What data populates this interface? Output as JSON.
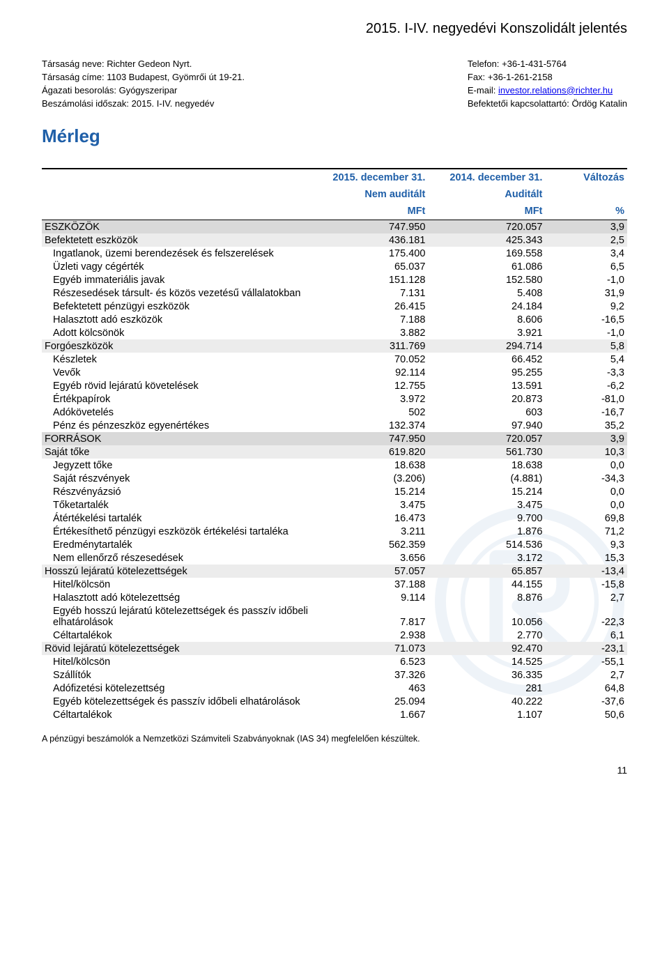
{
  "page": {
    "title": "2015. I-IV. negyedévi Konszolidált jelentés",
    "section": "Mérleg",
    "footnote": "A pénzügyi beszámolók a Nemzetközi Számviteli Szabványoknak (IAS 34) megfelelően készültek.",
    "page_number": "11"
  },
  "header": {
    "left": {
      "l1_label": "Társaság neve:",
      "l1_value": "Richter Gedeon Nyrt.",
      "l2_label": "Társaság címe:",
      "l2_value": "1103 Budapest, Gyömrői út 19-21.",
      "l3_label": "Ágazati besorolás:",
      "l3_value": "Gyógyszeripar",
      "l4_label": "Beszámolási  időszak:",
      "l4_value": "2015. I-IV. negyedév"
    },
    "right": {
      "r1_label": "Telefon:",
      "r1_value": "+36-1-431-5764",
      "r2_label": "Fax:",
      "r2_value": "+36-1-261-2158",
      "r3_label": "E-mail:",
      "r3_value": "investor.relations@richter.hu",
      "r4_label": "Befektetői kapcsolattartó:",
      "r4_value": "Ördög Katalin"
    }
  },
  "table": {
    "columns": {
      "col1_line1": "2015. december 31.",
      "col1_line2": "Nem auditált",
      "col1_line3": "MFt",
      "col2_line1": "2014. december 31.",
      "col2_line2": "Auditált",
      "col2_line3": "MFt",
      "col3_line1": "Változás",
      "col3_line2": "",
      "col3_line3": "%"
    },
    "rows": [
      {
        "label": "ESZKÖZÖK",
        "v1": "747.950",
        "v2": "720.057",
        "v3": "3,9",
        "shade": "shaded",
        "indent": 0
      },
      {
        "label": "Befektetett eszközök",
        "v1": "436.181",
        "v2": "425.343",
        "v3": "2,5",
        "shade": "light-shaded",
        "indent": 0
      },
      {
        "label": "Ingatlanok, üzemi berendezések és felszerelések",
        "v1": "175.400",
        "v2": "169.558",
        "v3": "3,4",
        "shade": "",
        "indent": 1
      },
      {
        "label": "Üzleti vagy cégérték",
        "v1": "65.037",
        "v2": "61.086",
        "v3": "6,5",
        "shade": "",
        "indent": 1
      },
      {
        "label": "Egyéb immateriális javak",
        "v1": "151.128",
        "v2": "152.580",
        "v3": "-1,0",
        "shade": "",
        "indent": 1
      },
      {
        "label": "Részesedések társult- és közös vezetésű vállalatokban",
        "v1": "7.131",
        "v2": "5.408",
        "v3": "31,9",
        "shade": "",
        "indent": 1
      },
      {
        "label": "Befektetett pénzügyi eszközök",
        "v1": "26.415",
        "v2": "24.184",
        "v3": "9,2",
        "shade": "",
        "indent": 1
      },
      {
        "label": "Halasztott adó eszközök",
        "v1": "7.188",
        "v2": "8.606",
        "v3": "-16,5",
        "shade": "",
        "indent": 1
      },
      {
        "label": "Adott kölcsönök",
        "v1": "3.882",
        "v2": "3.921",
        "v3": "-1,0",
        "shade": "",
        "indent": 1
      },
      {
        "label": "Forgóeszközök",
        "v1": "311.769",
        "v2": "294.714",
        "v3": "5,8",
        "shade": "light-shaded",
        "indent": 0
      },
      {
        "label": "Készletek",
        "v1": "70.052",
        "v2": "66.452",
        "v3": "5,4",
        "shade": "",
        "indent": 1
      },
      {
        "label": "Vevők",
        "v1": "92.114",
        "v2": "95.255",
        "v3": "-3,3",
        "shade": "",
        "indent": 1
      },
      {
        "label": "Egyéb rövid lejáratú követelések",
        "v1": "12.755",
        "v2": "13.591",
        "v3": "-6,2",
        "shade": "",
        "indent": 1
      },
      {
        "label": "Értékpapírok",
        "v1": "3.972",
        "v2": "20.873",
        "v3": "-81,0",
        "shade": "",
        "indent": 1
      },
      {
        "label": "Adókövetelés",
        "v1": "502",
        "v2": "603",
        "v3": "-16,7",
        "shade": "",
        "indent": 1
      },
      {
        "label": "Pénz és pénzeszköz egyenértékes",
        "v1": "132.374",
        "v2": "97.940",
        "v3": "35,2",
        "shade": "",
        "indent": 1
      },
      {
        "label": "FORRÁSOK",
        "v1": "747.950",
        "v2": "720.057",
        "v3": "3,9",
        "shade": "shaded",
        "indent": 0
      },
      {
        "label": "Saját tőke",
        "v1": "619.820",
        "v2": "561.730",
        "v3": "10,3",
        "shade": "light-shaded",
        "indent": 0
      },
      {
        "label": "Jegyzett tőke",
        "v1": "18.638",
        "v2": "18.638",
        "v3": "0,0",
        "shade": "",
        "indent": 1
      },
      {
        "label": "Saját részvények",
        "v1": "(3.206)",
        "v2": "(4.881)",
        "v3": "-34,3",
        "shade": "",
        "indent": 1
      },
      {
        "label": "Részvényázsió",
        "v1": "15.214",
        "v2": "15.214",
        "v3": "0,0",
        "shade": "",
        "indent": 1
      },
      {
        "label": "Tőketartalék",
        "v1": "3.475",
        "v2": "3.475",
        "v3": "0,0",
        "shade": "",
        "indent": 1
      },
      {
        "label": "Átértékelési tartalék",
        "v1": "16.473",
        "v2": "9.700",
        "v3": "69,8",
        "shade": "",
        "indent": 1
      },
      {
        "label": "Értékesíthető pénzügyi eszközök értékelési tartaléka",
        "v1": "3.211",
        "v2": "1.876",
        "v3": "71,2",
        "shade": "",
        "indent": 1
      },
      {
        "label": "Eredménytartalék",
        "v1": "562.359",
        "v2": "514.536",
        "v3": "9,3",
        "shade": "",
        "indent": 1
      },
      {
        "label": "Nem ellenőrző részesedések",
        "v1": "3.656",
        "v2": "3.172",
        "v3": "15,3",
        "shade": "",
        "indent": 1
      },
      {
        "label": "Hosszú lejáratú kötelezettségek",
        "v1": "57.057",
        "v2": "65.857",
        "v3": "-13,4",
        "shade": "light-shaded",
        "indent": 0
      },
      {
        "label": "Hitel/kölcsön",
        "v1": "37.188",
        "v2": "44.155",
        "v3": "-15,8",
        "shade": "",
        "indent": 1
      },
      {
        "label": "Halasztott adó kötelezettség",
        "v1": "9.114",
        "v2": "8.876",
        "v3": "2,7",
        "shade": "",
        "indent": 1
      },
      {
        "label": "Egyéb hosszú lejáratú kötelezettségek és passzív időbeli elhatárolások",
        "v1": "7.817",
        "v2": "10.056",
        "v3": "-22,3",
        "shade": "",
        "indent": 1
      },
      {
        "label": "Céltartalékok",
        "v1": "2.938",
        "v2": "2.770",
        "v3": "6,1",
        "shade": "",
        "indent": 1
      },
      {
        "label": "Rövid lejáratú kötelezettségek",
        "v1": "71.073",
        "v2": "92.470",
        "v3": "-23,1",
        "shade": "light-shaded",
        "indent": 0
      },
      {
        "label": "Hitel/kölcsön",
        "v1": "6.523",
        "v2": "14.525",
        "v3": "-55,1",
        "shade": "",
        "indent": 1
      },
      {
        "label": "Szállítók",
        "v1": "37.326",
        "v2": "36.335",
        "v3": "2,7",
        "shade": "",
        "indent": 1
      },
      {
        "label": "Adófizetési kötelezettség",
        "v1": "463",
        "v2": "281",
        "v3": "64,8",
        "shade": "",
        "indent": 1
      },
      {
        "label": "Egyéb kötelezettségek és passzív időbeli elhatárolások",
        "v1": "25.094",
        "v2": "40.222",
        "v3": "-37,6",
        "shade": "",
        "indent": 1
      },
      {
        "label": "Céltartalékok",
        "v1": "1.667",
        "v2": "1.107",
        "v3": "50,6",
        "shade": "",
        "indent": 1
      }
    ],
    "col_widths": [
      "46%",
      "20%",
      "20%",
      "14%"
    ]
  },
  "colors": {
    "heading_blue": "#1f5fa8",
    "shade_dark": "#d9d9d9",
    "shade_light": "#ececec",
    "link": "#0000ee"
  }
}
